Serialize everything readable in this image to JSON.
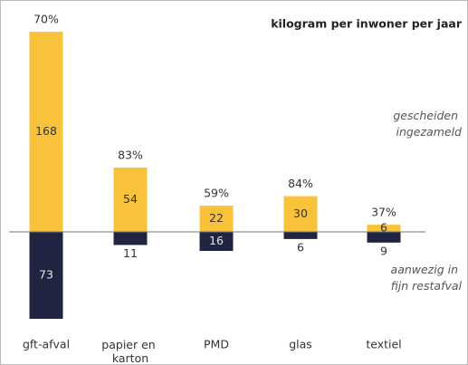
{
  "chart_data": {
    "type": "diverging-bar",
    "unit_label": "kilogram per inwoner per jaar",
    "categories": [
      "gft-afval",
      "papier en karton",
      "PMD",
      "glas",
      "textiel"
    ],
    "series": [
      {
        "name": "gescheiden ingezameld",
        "color": "#f8c23a",
        "direction": "up",
        "values": [
          168,
          54,
          22,
          30,
          6
        ]
      },
      {
        "name": "aanwezig in fijn restafval",
        "color": "#1f2540",
        "direction": "down",
        "values": [
          73,
          11,
          16,
          6,
          9
        ]
      }
    ],
    "shares": {
      "values": [
        70,
        83,
        59,
        84,
        37
      ],
      "value_labels": [
        "70%",
        "83%",
        "59%",
        "84%",
        "37%"
      ]
    }
  }
}
